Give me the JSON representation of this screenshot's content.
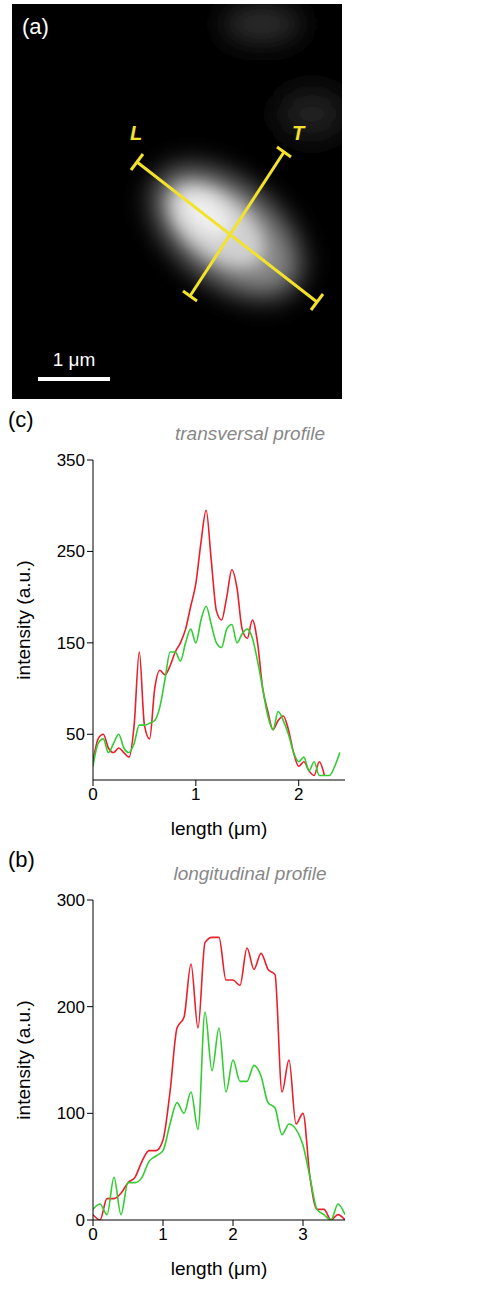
{
  "image": {
    "label": "(a)",
    "line_labels": [
      "L",
      "T"
    ],
    "scale_bar": "1 μm"
  },
  "chart_data": [
    {
      "type": "line",
      "label": "(c)",
      "title": "transversal profile",
      "x_label": "length (μm)",
      "y_label": "intensity (a.u.)",
      "grid": false,
      "x": [
        0,
        0.05,
        0.1,
        0.15,
        0.2,
        0.25,
        0.3,
        0.35,
        0.4,
        0.45,
        0.5,
        0.55,
        0.6,
        0.65,
        0.7,
        0.75,
        0.8,
        0.85,
        0.9,
        0.95,
        1.0,
        1.05,
        1.1,
        1.15,
        1.2,
        1.25,
        1.3,
        1.35,
        1.4,
        1.45,
        1.5,
        1.55,
        1.6,
        1.65,
        1.7,
        1.75,
        1.8,
        1.85,
        1.9,
        1.95,
        2.0,
        2.05,
        2.1,
        2.15,
        2.2,
        2.25,
        2.3,
        2.35,
        2.4
      ],
      "xlim": [
        0,
        2.45
      ],
      "xticks": [
        0,
        1,
        2
      ],
      "ylim": [
        0,
        350
      ],
      "yticks": [
        50,
        150,
        250,
        350
      ],
      "series": [
        {
          "color": "#e8202a",
          "values": [
            20,
            45,
            50,
            35,
            30,
            35,
            30,
            25,
            60,
            140,
            60,
            45,
            100,
            120,
            115,
            125,
            140,
            150,
            165,
            190,
            215,
            260,
            295,
            240,
            185,
            175,
            200,
            230,
            210,
            165,
            155,
            175,
            150,
            100,
            75,
            55,
            65,
            70,
            55,
            30,
            15,
            20,
            10,
            5,
            20,
            5,
            null,
            null,
            null
          ]
        },
        {
          "color": "#33cc33",
          "values": [
            15,
            40,
            45,
            30,
            40,
            50,
            35,
            30,
            40,
            60,
            60,
            62,
            65,
            80,
            110,
            140,
            140,
            130,
            150,
            165,
            150,
            175,
            190,
            170,
            150,
            145,
            165,
            170,
            150,
            160,
            165,
            155,
            130,
            100,
            70,
            55,
            75,
            65,
            50,
            30,
            20,
            25,
            10,
            20,
            5,
            5,
            5,
            15,
            30
          ]
        }
      ]
    },
    {
      "type": "line",
      "label": "(b)",
      "title": "longitudinal profile",
      "x_label": "length (μm)",
      "y_label": "intensity (a.u.)",
      "grid": false,
      "x": [
        0,
        0.1,
        0.2,
        0.3,
        0.4,
        0.5,
        0.6,
        0.7,
        0.8,
        0.9,
        1.0,
        1.1,
        1.2,
        1.3,
        1.4,
        1.5,
        1.6,
        1.7,
        1.8,
        1.9,
        2.0,
        2.1,
        2.2,
        2.3,
        2.4,
        2.5,
        2.6,
        2.7,
        2.8,
        2.9,
        3.0,
        3.1,
        3.2,
        3.3,
        3.4,
        3.5,
        3.6
      ],
      "xlim": [
        0,
        3.6
      ],
      "xticks": [
        0,
        1,
        2,
        3
      ],
      "ylim": [
        0,
        300
      ],
      "yticks": [
        0,
        100,
        200,
        300
      ],
      "series": [
        {
          "color": "#e8202a",
          "values": [
            5,
            0,
            20,
            20,
            25,
            35,
            40,
            55,
            65,
            65,
            75,
            120,
            180,
            190,
            240,
            180,
            260,
            265,
            265,
            225,
            225,
            220,
            255,
            235,
            250,
            235,
            230,
            120,
            150,
            90,
            100,
            40,
            10,
            10,
            0,
            5,
            0
          ]
        },
        {
          "color": "#33cc33",
          "values": [
            10,
            15,
            5,
            40,
            5,
            35,
            35,
            40,
            55,
            60,
            65,
            90,
            110,
            100,
            120,
            85,
            195,
            140,
            180,
            120,
            150,
            130,
            130,
            145,
            135,
            110,
            105,
            80,
            90,
            85,
            70,
            40,
            10,
            5,
            0,
            15,
            5
          ]
        }
      ]
    }
  ]
}
